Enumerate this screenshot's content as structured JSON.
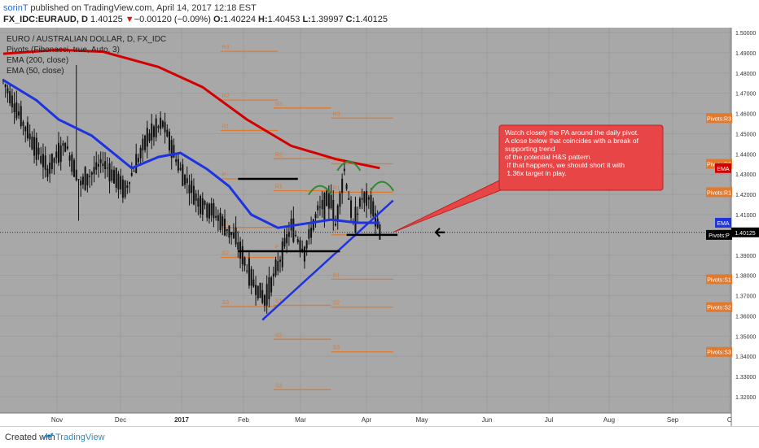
{
  "header": {
    "author": "sorinT",
    "published": " published on TradingView.com, April 14, 2017 12:18 EST",
    "symbol": "FX_IDC:EURAUD, D",
    "last": "1.40125",
    "change_arrow": "▼",
    "change": "−0.00120 (−0.09%)",
    "o_label": "O:",
    "o": "1.40224",
    "h_label": "H:",
    "h": "1.40453",
    "l_label": "L:",
    "l": "1.39997",
    "c_label": "C:",
    "c": "1.40125"
  },
  "legend": {
    "title": "EURO / AUSTRALIAN DOLLAR, D, FX_IDC",
    "pivots": "Pivots (Fibonacci, true, Auto, 3)",
    "ema200": "EMA (200, close)",
    "ema50": "EMA (50, close)"
  },
  "chart_data": {
    "type": "candlestick",
    "symbol": "EURAUD",
    "timeframe": "D",
    "x_ticks": [
      "Nov",
      "Dec",
      "2017",
      "Feb",
      "Mar",
      "Apr",
      "May",
      "Jun",
      "Jul",
      "Aug",
      "Sep",
      "O"
    ],
    "y_ticks": [
      "1.50000",
      "1.49000",
      "1.48000",
      "1.47000",
      "1.46000",
      "1.45000",
      "1.44000",
      "1.43000",
      "1.42000",
      "1.41000",
      "1.39000",
      "1.38000",
      "1.37000",
      "1.36000",
      "1.35000",
      "1.34000",
      "1.33000",
      "1.32000"
    ],
    "ylim": [
      1.3175,
      1.502
    ],
    "last_price": 1.40125,
    "last_price_label": "1.40125",
    "price_series": [
      {
        "day": 0,
        "price": 1.476
      },
      {
        "day": 10,
        "price": 1.453
      },
      {
        "day": 20,
        "price": 1.432
      },
      {
        "day": 28,
        "price": 1.445
      },
      {
        "day": 35,
        "price": 1.425
      },
      {
        "day": 45,
        "price": 1.436
      },
      {
        "day": 55,
        "price": 1.422
      },
      {
        "day": 65,
        "price": 1.448
      },
      {
        "day": 72,
        "price": 1.455
      },
      {
        "day": 80,
        "price": 1.432
      },
      {
        "day": 88,
        "price": 1.417
      },
      {
        "day": 95,
        "price": 1.411
      },
      {
        "day": 105,
        "price": 1.398
      },
      {
        "day": 112,
        "price": 1.378
      },
      {
        "day": 118,
        "price": 1.368
      },
      {
        "day": 124,
        "price": 1.385
      },
      {
        "day": 130,
        "price": 1.404
      },
      {
        "day": 136,
        "price": 1.392
      },
      {
        "day": 142,
        "price": 1.412
      },
      {
        "day": 148,
        "price": 1.418
      },
      {
        "day": 150,
        "price": 1.405
      },
      {
        "day": 154,
        "price": 1.432
      },
      {
        "day": 158,
        "price": 1.405
      },
      {
        "day": 162,
        "price": 1.418
      },
      {
        "day": 166,
        "price": 1.416
      },
      {
        "day": 170,
        "price": 1.401
      }
    ],
    "ema200": [
      {
        "day": 0,
        "price": 1.4895
      },
      {
        "day": 25,
        "price": 1.4915
      },
      {
        "day": 45,
        "price": 1.4905
      },
      {
        "day": 70,
        "price": 1.483
      },
      {
        "day": 90,
        "price": 1.473
      },
      {
        "day": 110,
        "price": 1.457
      },
      {
        "day": 130,
        "price": 1.444
      },
      {
        "day": 150,
        "price": 1.4375
      },
      {
        "day": 170,
        "price": 1.433
      }
    ],
    "ema50": [
      {
        "day": 0,
        "price": 1.4765
      },
      {
        "day": 15,
        "price": 1.4665
      },
      {
        "day": 25,
        "price": 1.457
      },
      {
        "day": 40,
        "price": 1.449
      },
      {
        "day": 58,
        "price": 1.433
      },
      {
        "day": 70,
        "price": 1.4385
      },
      {
        "day": 80,
        "price": 1.4405
      },
      {
        "day": 92,
        "price": 1.4325
      },
      {
        "day": 102,
        "price": 1.424
      },
      {
        "day": 112,
        "price": 1.41
      },
      {
        "day": 124,
        "price": 1.4035
      },
      {
        "day": 136,
        "price": 1.4055
      },
      {
        "day": 148,
        "price": 1.4075
      },
      {
        "day": 160,
        "price": 1.406
      },
      {
        "day": 170,
        "price": 1.406
      }
    ],
    "trendline": [
      {
        "day": 117,
        "price": 1.358
      },
      {
        "day": 176,
        "price": 1.417
      }
    ],
    "neckline": [
      {
        "day": 155,
        "price": 1.4
      },
      {
        "day": 178,
        "price": 1.4
      }
    ],
    "pivot_sets": [
      {
        "start_day": 98,
        "end_day": 124,
        "levels": [
          {
            "label": "R3",
            "price": 1.4907
          },
          {
            "label": "R2",
            "price": 1.4666
          },
          {
            "label": "R1",
            "price": 1.4516
          },
          {
            "label": "P",
            "price": 1.4277
          },
          {
            "label": "S1",
            "price": 1.4037
          },
          {
            "label": "S2",
            "price": 1.3889
          },
          {
            "label": "S3",
            "price": 1.3646
          }
        ]
      },
      {
        "start_day": 122,
        "end_day": 148,
        "levels": [
          {
            "label": "R3",
            "price": 1.4627
          },
          {
            "label": "R2",
            "price": 1.4376
          },
          {
            "label": "R1",
            "price": 1.4218
          },
          {
            "label": "P",
            "price": 1.3919
          },
          {
            "label": "S1",
            "price": 1.3652
          },
          {
            "label": "S2",
            "price": 1.3484
          },
          {
            "label": "S3",
            "price": 1.3235
          }
        ]
      },
      {
        "start_day": 148,
        "end_day": 176,
        "levels": [
          {
            "label": "R3",
            "price": 1.4577
          },
          {
            "label": "R2",
            "price": 1.4351
          },
          {
            "label": "R1",
            "price": 1.4211
          },
          {
            "label": "P",
            "price": 1.4
          },
          {
            "label": "S1",
            "price": 1.3781
          },
          {
            "label": "S2",
            "price": 1.3643
          },
          {
            "label": "S3",
            "price": 1.3422
          }
        ]
      }
    ],
    "right_labels": [
      {
        "text": "Pivots:R3",
        "price": 1.4577
      },
      {
        "text": "Pivots:R2",
        "price": 1.4351
      },
      {
        "text": "Pivots:R1",
        "price": 1.4211
      },
      {
        "text": "Pivots:P",
        "price": 1.4
      },
      {
        "text": "Pivots:S1",
        "price": 1.3781
      },
      {
        "text": "Pivots:S2",
        "price": 1.3643
      },
      {
        "text": "Pivots:S3",
        "price": 1.3422
      }
    ],
    "ema_tags": [
      {
        "text": "EMA",
        "price": 1.433,
        "color": "#d40000"
      },
      {
        "text": "EMA",
        "price": 1.406,
        "color": "#1e33e0"
      }
    ],
    "annotation": "Watch closely the PA around the daily pivot.\nA close below that coincides with a break of the supporting trend\nof the potential H&S pattern.\n If that happens, we should short it with a 1.36x target in play."
  },
  "footer": {
    "created": "Created with",
    "brand": "TradingView"
  },
  "colors": {
    "background": "#a8a8a8",
    "ema200": "#d40000",
    "ema50": "#1e33e0",
    "pivot": "#e07a2e",
    "annotation_bg": "#e84646",
    "candles": "#111111"
  }
}
